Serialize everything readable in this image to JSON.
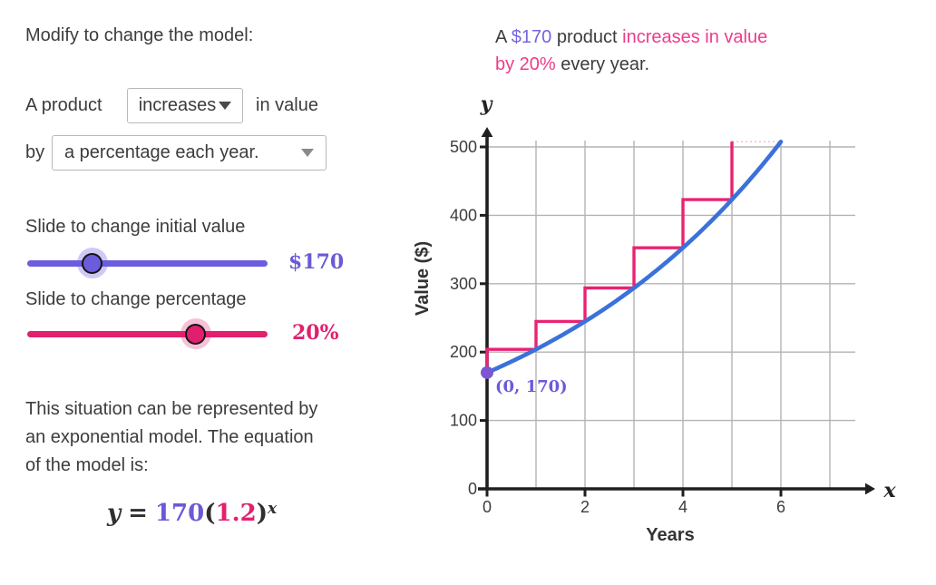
{
  "left_panel": {
    "heading": "Modify to change the model:",
    "sentence": {
      "prefix": "A product",
      "dropdown1_value": "increases",
      "middle": "in value",
      "by": "by",
      "dropdown2_value": "a percentage each year."
    },
    "initial_slider": {
      "label": "Slide to change initial value",
      "value": "$170",
      "thumb_percent": 27,
      "color": "#6C5CE0"
    },
    "percent_slider": {
      "label": "Slide to change percentage",
      "value": "20%",
      "thumb_percent": 70,
      "color": "#E2206E"
    },
    "description_lines": [
      "This situation can be represented by",
      "an exponential model. The equation",
      "of the model is:"
    ],
    "equation": {
      "y": "y",
      "equals": "=",
      "initial": "170",
      "lparen": "(",
      "rate": "1.2",
      "rparen": ")",
      "exponent": "x"
    }
  },
  "right_panel": {
    "title_line1_parts": [
      {
        "text": "A "
      },
      {
        "text": "$170"
      },
      {
        "text": " product "
      },
      {
        "text": "increases in value"
      }
    ],
    "title_line2_parts": [
      {
        "text": "by 20%"
      },
      {
        "text": " every year."
      }
    ]
  },
  "chart_data": {
    "type": "line",
    "title": "A $170 product increases in value by 20% every year.",
    "xlabel": "Years",
    "ylabel": "Value ($)",
    "x_var": "x",
    "y_var": "y",
    "xlim": [
      0,
      7.5
    ],
    "ylim": [
      0,
      515
    ],
    "x_ticks": [
      0,
      2,
      4,
      6
    ],
    "y_ticks": [
      0,
      100,
      200,
      300,
      400,
      500
    ],
    "x_gridlines": [
      1,
      2,
      3,
      4,
      5,
      6,
      7
    ],
    "y_gridlines": [
      100,
      200,
      300,
      400,
      500
    ],
    "grid": true,
    "model": {
      "equation": "y = 170(1.2)^x",
      "initial": 170,
      "rate": 1.2,
      "x_range": [
        0,
        6.03
      ]
    },
    "curve_points": [
      [
        0,
        170
      ],
      [
        1,
        204
      ],
      [
        2,
        244.8
      ],
      [
        3,
        293.76
      ],
      [
        4,
        352.51
      ],
      [
        5,
        423.01
      ],
      [
        6,
        507.62
      ]
    ],
    "step_values": [
      170,
      204,
      244.8,
      293.76,
      352.51,
      423.01,
      507.62
    ],
    "annotated_point": {
      "x": 0,
      "y": 170,
      "label": "(0, 170)"
    },
    "colors": {
      "curve": "#3B71DA",
      "steps": "#E82373",
      "point": "#7A57D1",
      "grid": "#B3B3B3",
      "axis": "#1F1F1F"
    }
  }
}
